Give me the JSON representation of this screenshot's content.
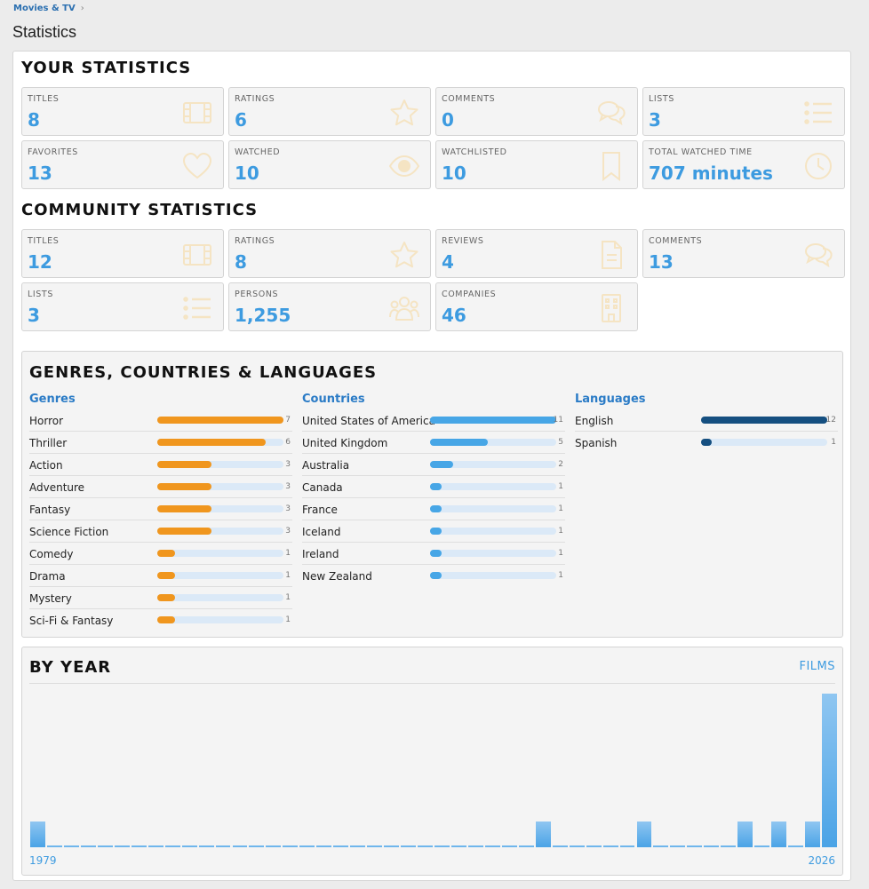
{
  "breadcrumb": {
    "item": "Movies & TV",
    "sep": "›"
  },
  "page_title": "Statistics",
  "your_stats": {
    "heading": "YOUR STATISTICS",
    "cards": [
      {
        "label": "TITLES",
        "value": "8",
        "icon": "film-icon"
      },
      {
        "label": "RATINGS",
        "value": "6",
        "icon": "star-icon"
      },
      {
        "label": "COMMENTS",
        "value": "0",
        "icon": "comments-icon"
      },
      {
        "label": "LISTS",
        "value": "3",
        "icon": "list-icon"
      },
      {
        "label": "FAVORITES",
        "value": "13",
        "icon": "heart-icon"
      },
      {
        "label": "WATCHED",
        "value": "10",
        "icon": "eye-icon"
      },
      {
        "label": "WATCHLISTED",
        "value": "10",
        "icon": "bookmark-icon"
      },
      {
        "label": "TOTAL WATCHED TIME",
        "value": "707 minutes",
        "icon": "clock-icon"
      }
    ]
  },
  "community_stats": {
    "heading": "COMMUNITY STATISTICS",
    "cards": [
      {
        "label": "TITLES",
        "value": "12",
        "icon": "film-icon"
      },
      {
        "label": "RATINGS",
        "value": "8",
        "icon": "star-icon"
      },
      {
        "label": "REVIEWS",
        "value": "4",
        "icon": "document-icon"
      },
      {
        "label": "COMMENTS",
        "value": "13",
        "icon": "comments-icon"
      },
      {
        "label": "LISTS",
        "value": "3",
        "icon": "list-icon"
      },
      {
        "label": "PERSONS",
        "value": "1,255",
        "icon": "people-icon"
      },
      {
        "label": "COMPANIES",
        "value": "46",
        "icon": "building-icon"
      }
    ]
  },
  "gcl": {
    "heading": "GENRES, COUNTRIES & LANGUAGES",
    "genres": {
      "title": "Genres",
      "color": "#f0961e",
      "max": 7,
      "items": [
        {
          "name": "Horror",
          "count": 7
        },
        {
          "name": "Thriller",
          "count": 6
        },
        {
          "name": "Action",
          "count": 3
        },
        {
          "name": "Adventure",
          "count": 3
        },
        {
          "name": "Fantasy",
          "count": 3
        },
        {
          "name": "Science Fiction",
          "count": 3
        },
        {
          "name": "Comedy",
          "count": 1
        },
        {
          "name": "Drama",
          "count": 1
        },
        {
          "name": "Mystery",
          "count": 1
        },
        {
          "name": "Sci-Fi & Fantasy",
          "count": 1
        }
      ]
    },
    "countries": {
      "title": "Countries",
      "color": "#47a6e6",
      "max": 11,
      "items": [
        {
          "name": "United States of America",
          "count": 11
        },
        {
          "name": "United Kingdom",
          "count": 5
        },
        {
          "name": "Australia",
          "count": 2
        },
        {
          "name": "Canada",
          "count": 1
        },
        {
          "name": "France",
          "count": 1
        },
        {
          "name": "Iceland",
          "count": 1
        },
        {
          "name": "Ireland",
          "count": 1
        },
        {
          "name": "New Zealand",
          "count": 1
        }
      ]
    },
    "languages": {
      "title": "Languages",
      "color": "#154f80",
      "max": 12,
      "items": [
        {
          "name": "English",
          "count": 12
        },
        {
          "name": "Spanish",
          "count": 1
        }
      ]
    }
  },
  "by_year": {
    "heading": "BY YEAR",
    "link": "FILMS",
    "start_label": "1979",
    "end_label": "2026",
    "chart_data": {
      "type": "bar",
      "x_start": 1979,
      "x_end": 2026,
      "values": [
        1,
        0,
        0,
        0,
        0,
        0,
        0,
        0,
        0,
        0,
        0,
        0,
        0,
        0,
        0,
        0,
        0,
        0,
        0,
        0,
        0,
        0,
        0,
        0,
        0,
        0,
        0,
        0,
        0,
        0,
        1,
        0,
        0,
        0,
        0,
        0,
        1,
        0,
        0,
        0,
        0,
        0,
        1,
        0,
        1,
        0,
        1,
        6
      ]
    }
  }
}
